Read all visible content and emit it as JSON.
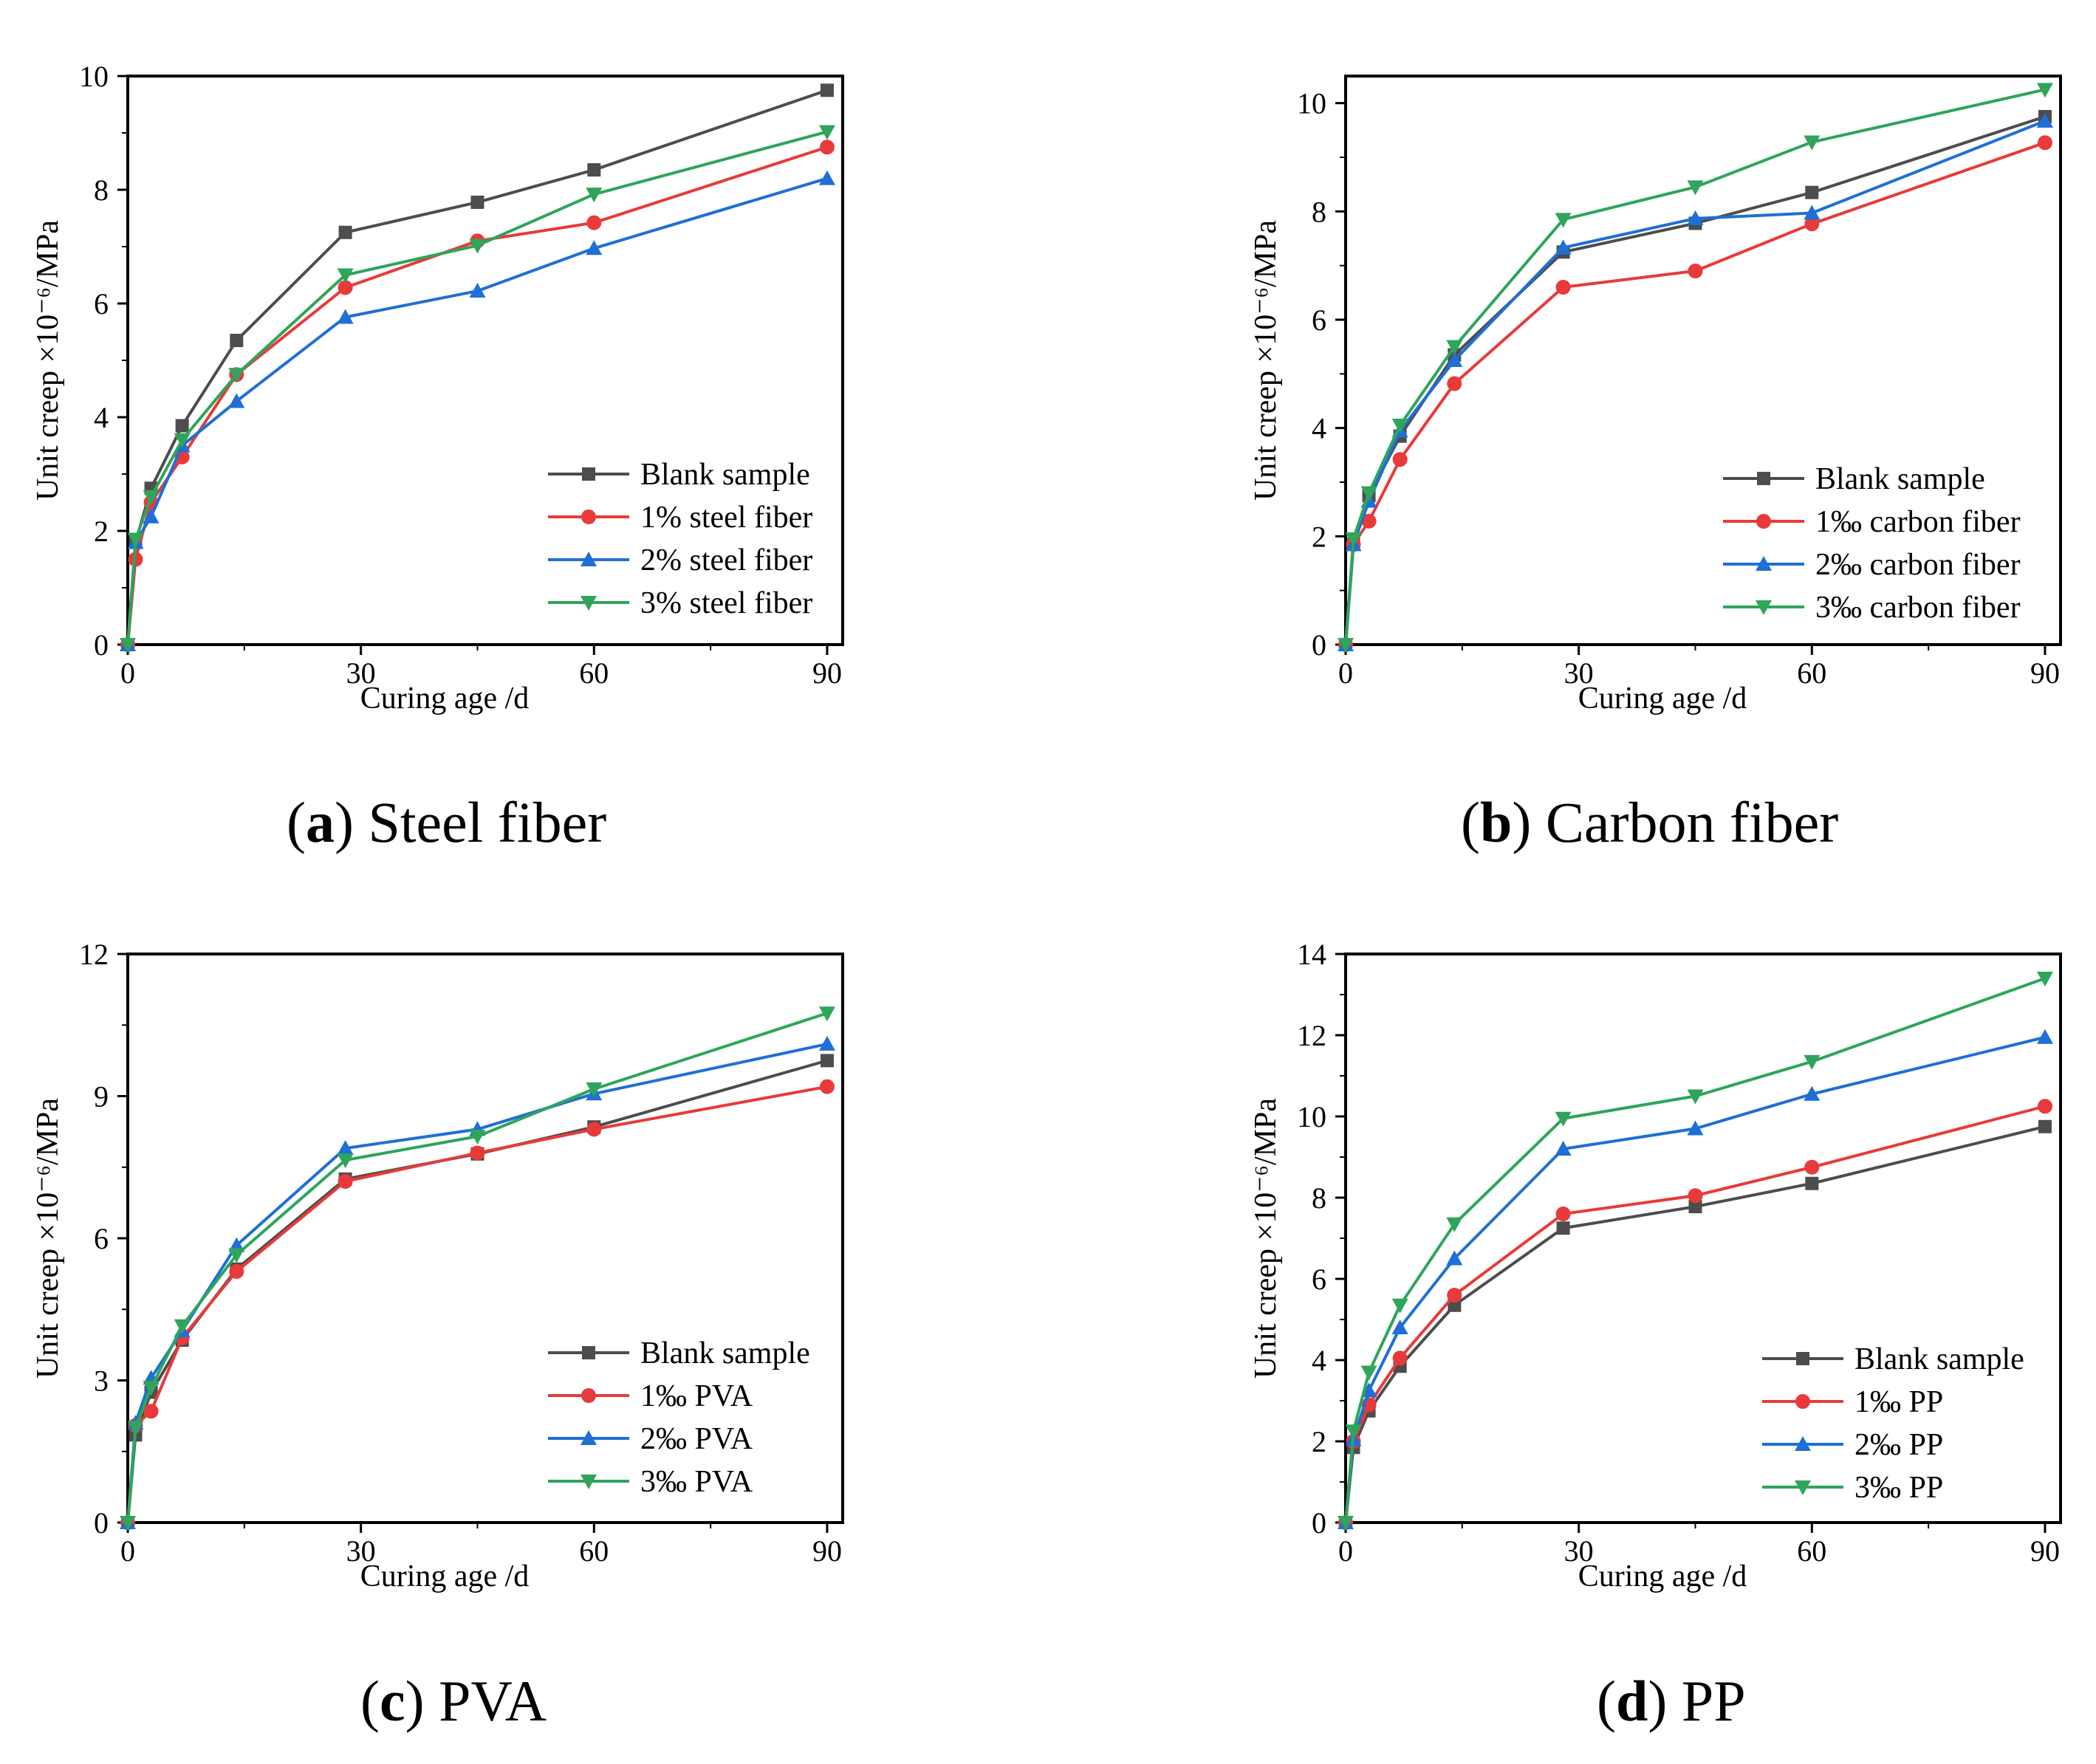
{
  "chart_data": [
    {
      "id": "a",
      "type": "line",
      "caption": {
        "letter": "a",
        "text": "Steel fiber"
      },
      "xlabel": "Curing age /d",
      "ylabel": "Unit creep ×10⁻⁶/MPa",
      "xlim": [
        0,
        92
      ],
      "ylim": [
        0,
        10
      ],
      "xticks": [
        0,
        30,
        60,
        90
      ],
      "yticks": [
        0,
        2,
        4,
        6,
        8,
        10
      ],
      "x": [
        0,
        1,
        3,
        7,
        14,
        28,
        45,
        60,
        90
      ],
      "legend_position": "lower-right",
      "series": [
        {
          "name": "Blank sample",
          "color": "#4d4d4d",
          "marker": "square",
          "values": [
            0,
            1.8,
            2.75,
            3.85,
            5.35,
            7.25,
            7.78,
            8.35,
            9.75
          ]
        },
        {
          "name": "1% steel fiber",
          "color": "#e83a3a",
          "marker": "circle",
          "values": [
            0,
            1.5,
            2.5,
            3.3,
            4.75,
            6.28,
            7.1,
            7.42,
            8.75
          ]
        },
        {
          "name": "2% steel fiber",
          "color": "#1f6fd6",
          "marker": "triangle-up",
          "values": [
            0,
            1.8,
            2.25,
            3.5,
            4.28,
            5.76,
            6.22,
            6.97,
            8.2
          ]
        },
        {
          "name": "3% steel fiber",
          "color": "#2ea55a",
          "marker": "triangle-down",
          "values": [
            0,
            1.85,
            2.6,
            3.6,
            4.75,
            6.5,
            7.02,
            7.92,
            9.02
          ]
        }
      ]
    },
    {
      "id": "b",
      "type": "line",
      "caption": {
        "letter": "b",
        "text": "Carbon fiber"
      },
      "xlabel": "Curing age /d",
      "ylabel": "Unit creep ×10⁻⁶/MPa",
      "xlim": [
        0,
        92
      ],
      "ylim": [
        0,
        10.5
      ],
      "xticks": [
        0,
        30,
        60,
        90
      ],
      "yticks": [
        0,
        2,
        4,
        6,
        8,
        10
      ],
      "x": [
        0,
        1,
        3,
        7,
        14,
        28,
        45,
        60,
        90
      ],
      "legend_position": "lower-right",
      "series": [
        {
          "name": "Blank sample",
          "color": "#4d4d4d",
          "marker": "square",
          "values": [
            0,
            1.85,
            2.75,
            3.85,
            5.35,
            7.25,
            7.78,
            8.35,
            9.75
          ]
        },
        {
          "name": "1‰ carbon fiber",
          "color": "#e83a3a",
          "marker": "circle",
          "values": [
            0,
            1.85,
            2.28,
            3.42,
            4.82,
            6.6,
            6.9,
            7.77,
            9.27
          ]
        },
        {
          "name": "2‰ carbon fiber",
          "color": "#1f6fd6",
          "marker": "triangle-up",
          "values": [
            0,
            1.85,
            2.65,
            3.95,
            5.25,
            7.33,
            7.87,
            7.97,
            9.67
          ]
        },
        {
          "name": "3‰ carbon fiber",
          "color": "#2ea55a",
          "marker": "triangle-down",
          "values": [
            0,
            1.95,
            2.8,
            4.05,
            5.5,
            7.85,
            8.45,
            9.28,
            10.25
          ]
        }
      ]
    },
    {
      "id": "c",
      "type": "line",
      "caption": {
        "letter": "c",
        "text": "PVA"
      },
      "xlabel": "Curing age /d",
      "ylabel": "Unit creep ×10⁻⁶/MPa",
      "xlim": [
        0,
        92
      ],
      "ylim": [
        0,
        12
      ],
      "xticks": [
        0,
        30,
        60,
        90
      ],
      "yticks": [
        0,
        3,
        6,
        9,
        12
      ],
      "x": [
        0,
        1,
        3,
        7,
        14,
        28,
        45,
        60,
        90
      ],
      "legend_position": "lower-right",
      "series": [
        {
          "name": "Blank sample",
          "color": "#4d4d4d",
          "marker": "square",
          "values": [
            0,
            1.85,
            2.75,
            3.85,
            5.35,
            7.25,
            7.78,
            8.35,
            9.75
          ]
        },
        {
          "name": "1‰ PVA",
          "color": "#e83a3a",
          "marker": "circle",
          "values": [
            0,
            2.05,
            2.35,
            3.9,
            5.3,
            7.2,
            7.8,
            8.3,
            9.2
          ]
        },
        {
          "name": "2‰ PVA",
          "color": "#1f6fd6",
          "marker": "triangle-up",
          "values": [
            0,
            2.1,
            3.05,
            4.05,
            5.85,
            7.9,
            8.3,
            9.05,
            10.1
          ]
        },
        {
          "name": "3‰ PVA",
          "color": "#2ea55a",
          "marker": "triangle-down",
          "values": [
            0,
            2.0,
            2.85,
            4.15,
            5.65,
            7.65,
            8.15,
            9.15,
            10.75
          ]
        }
      ]
    },
    {
      "id": "d",
      "type": "line",
      "caption": {
        "letter": "d",
        "text": "PP"
      },
      "xlabel": "Curing age /d",
      "ylabel": "Unit creep ×10⁻⁶/MPa",
      "xlim": [
        0,
        92
      ],
      "ylim": [
        0,
        14
      ],
      "xticks": [
        0,
        30,
        60,
        90
      ],
      "yticks": [
        0,
        2,
        4,
        6,
        8,
        10,
        12,
        14
      ],
      "x": [
        0,
        1,
        3,
        7,
        14,
        28,
        45,
        60,
        90
      ],
      "legend_position": "lower-right",
      "series": [
        {
          "name": "Blank sample",
          "color": "#4d4d4d",
          "marker": "square",
          "values": [
            0,
            1.85,
            2.75,
            3.85,
            5.35,
            7.25,
            7.78,
            8.35,
            9.75
          ]
        },
        {
          "name": "1‰ PP",
          "color": "#e83a3a",
          "marker": "circle",
          "values": [
            0,
            2.0,
            2.9,
            4.05,
            5.6,
            7.6,
            8.05,
            8.75,
            10.25
          ]
        },
        {
          "name": "2‰ PP",
          "color": "#1f6fd6",
          "marker": "triangle-up",
          "values": [
            0,
            2.05,
            3.25,
            4.8,
            6.5,
            9.2,
            9.7,
            10.55,
            11.95
          ]
        },
        {
          "name": "3‰ PP",
          "color": "#2ea55a",
          "marker": "triangle-down",
          "values": [
            0,
            2.25,
            3.7,
            5.35,
            7.35,
            9.95,
            10.5,
            11.35,
            13.4
          ]
        }
      ]
    }
  ]
}
